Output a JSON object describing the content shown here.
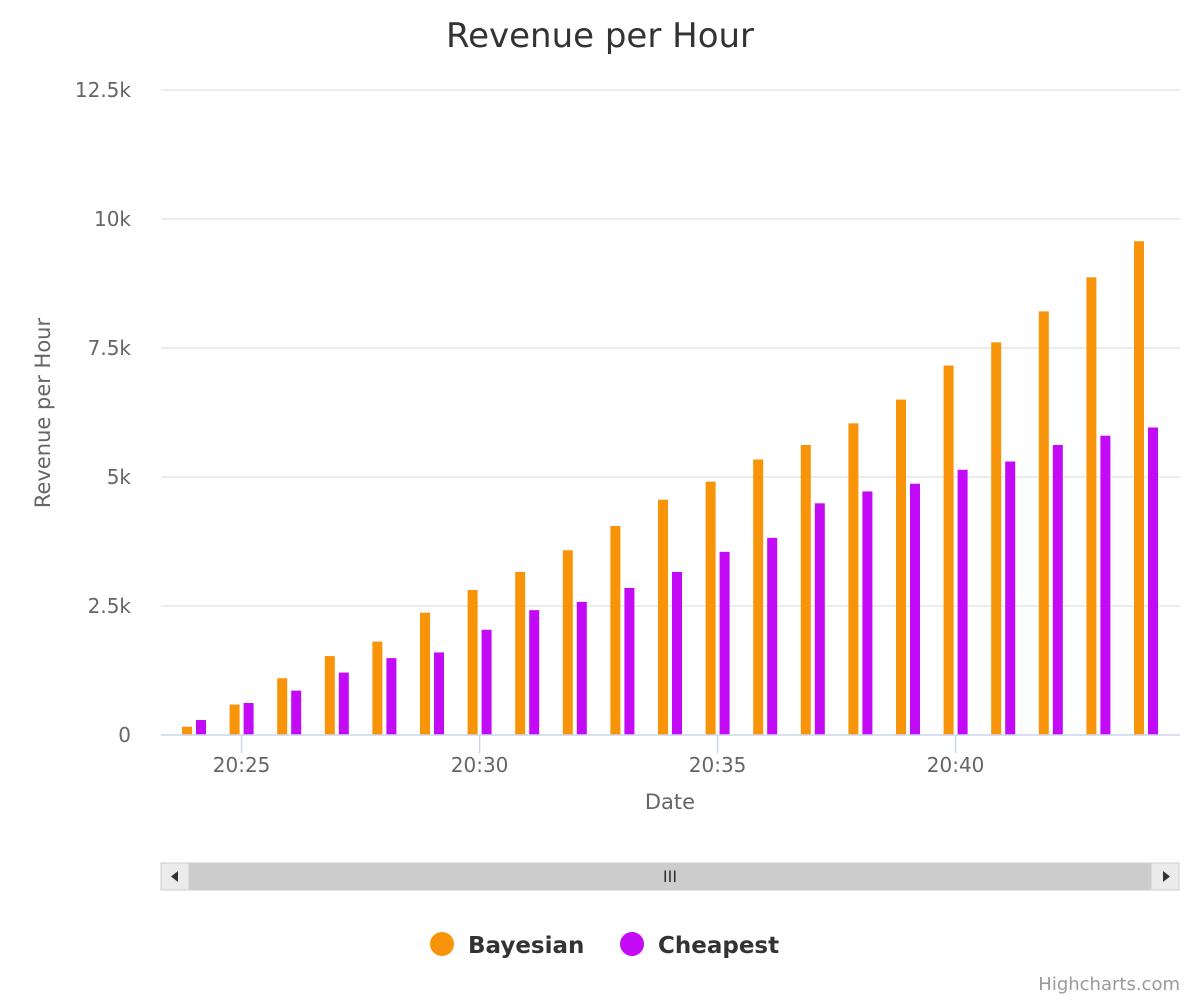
{
  "chart_data": {
    "type": "bar",
    "title": "Revenue per Hour",
    "xlabel": "Date",
    "ylabel": "Revenue per Hour",
    "ylim": [
      0,
      12500
    ],
    "y_ticks": [
      0,
      2500,
      5000,
      7500,
      10000,
      12500
    ],
    "y_tick_labels": [
      "0",
      "2.5k",
      "5k",
      "7.5k",
      "10k",
      "12.5k"
    ],
    "x_tick_labels": [
      "20:25",
      "20:30",
      "20:35",
      "20:40"
    ],
    "x_tick_positions": [
      20.25,
      20.3,
      20.35,
      20.4
    ],
    "categories": [
      "20:24",
      "20:25",
      "20:26",
      "20:27",
      "20:28",
      "20:29",
      "20:30",
      "20:31",
      "20:32",
      "20:33",
      "20:34",
      "20:35",
      "20:36",
      "20:37",
      "20:38",
      "20:39",
      "20:40",
      "20:41",
      "20:42",
      "20:43",
      "20:44"
    ],
    "series": [
      {
        "name": "Bayesian",
        "color": "#f7940a",
        "values": [
          160,
          590,
          1100,
          1530,
          1810,
          2370,
          2810,
          3160,
          3580,
          4050,
          4560,
          4910,
          5340,
          5620,
          6040,
          6500,
          7160,
          7610,
          8210,
          8870,
          9570
        ]
      },
      {
        "name": "Cheapest",
        "color": "#c20af7",
        "values": [
          290,
          620,
          860,
          1210,
          1490,
          1600,
          2040,
          2420,
          2580,
          2850,
          3160,
          3550,
          3820,
          4490,
          4720,
          4870,
          5140,
          5300,
          5620,
          5800,
          5960
        ]
      }
    ],
    "grid": true,
    "legend_position": "bottom"
  },
  "navigator": {
    "left_arrow_icon": "triangle-left-icon",
    "right_arrow_icon": "triangle-right-icon",
    "grip_label": "III"
  },
  "credits": "Highcharts.com"
}
